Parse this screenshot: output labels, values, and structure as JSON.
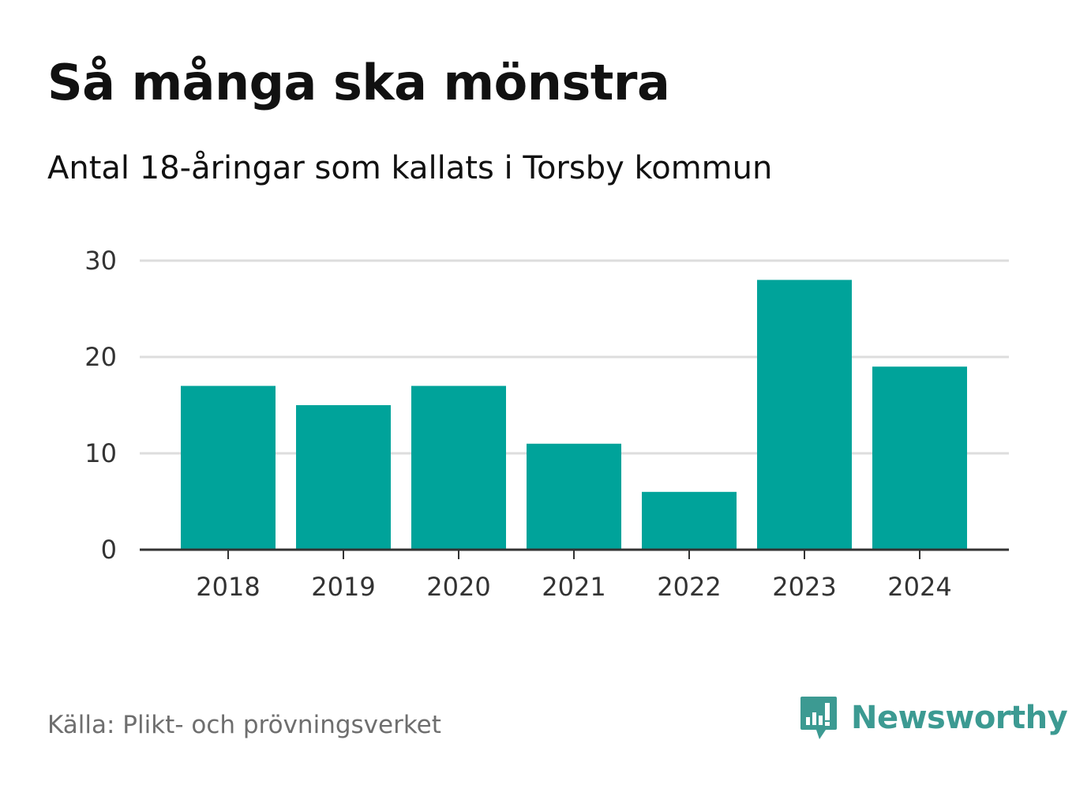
{
  "title": "Så många ska mönstra",
  "subtitle": "Antal 18-åringar som kallats i Torsby kommun",
  "source": "Källa: Plikt- och prövningsverket",
  "brand": {
    "name": "Newsworthy",
    "icon": "bar-chart-speech-bubble-icon",
    "color": "#3c9a92"
  },
  "colors": {
    "bar": "#00a39a",
    "grid": "#dddddd",
    "axis": "#333333"
  },
  "chart_data": {
    "type": "bar",
    "categories": [
      "2018",
      "2019",
      "2020",
      "2021",
      "2022",
      "2023",
      "2024"
    ],
    "values": [
      17,
      15,
      17,
      11,
      6,
      28,
      19
    ],
    "ylim": [
      0,
      30
    ],
    "yticks": [
      "0",
      "10",
      "20",
      "30"
    ],
    "grid": true,
    "xlabel": "",
    "ylabel": ""
  }
}
